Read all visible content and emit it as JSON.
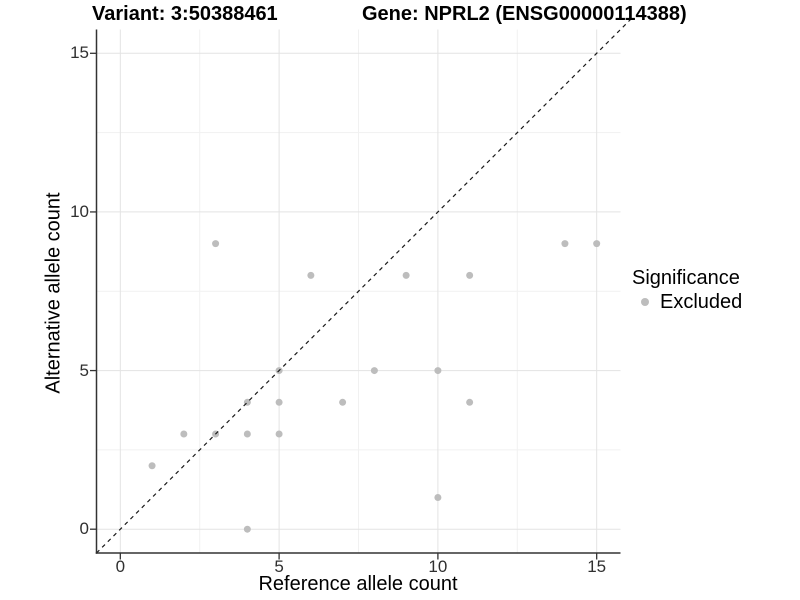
{
  "figure": {
    "title_left": "Variant: 3:50388461",
    "title_right": "Gene: NPRL2 (ENSG00000114388)"
  },
  "chart_data": {
    "type": "scatter",
    "title": "Variant: 3:50388461  /  Gene: NPRL2 (ENSG00000114388)",
    "xlabel": "Reference allele count",
    "ylabel": "Alternative allele count",
    "xlim": [
      -0.75,
      15.75
    ],
    "ylim": [
      -0.75,
      15.75
    ],
    "x_ticks": [
      0,
      5,
      10,
      15
    ],
    "y_ticks": [
      0,
      5,
      10,
      15
    ],
    "minor_gridlines": [
      2.5,
      7.5,
      12.5
    ],
    "grid": true,
    "identity_line": {
      "style": "dashed",
      "equation": "y = x"
    },
    "legend": {
      "title": "Significance",
      "position": "right",
      "items": [
        {
          "label": "Excluded",
          "color": "#bdbdbd"
        }
      ]
    },
    "series": [
      {
        "name": "Excluded",
        "color": "#bdbdbd",
        "points": [
          [
            1,
            2
          ],
          [
            2,
            3
          ],
          [
            3,
            3
          ],
          [
            3,
            9
          ],
          [
            4,
            0
          ],
          [
            4,
            3
          ],
          [
            4,
            4
          ],
          [
            5,
            3
          ],
          [
            5,
            4
          ],
          [
            5,
            5
          ],
          [
            6,
            8
          ],
          [
            7,
            4
          ],
          [
            8,
            5
          ],
          [
            9,
            8
          ],
          [
            10,
            1
          ],
          [
            10,
            5
          ],
          [
            11,
            4
          ],
          [
            11,
            8
          ],
          [
            14,
            9
          ],
          [
            15,
            9
          ]
        ]
      }
    ]
  },
  "colors": {
    "point": "#bdbdbd",
    "grid_major": "#e3e3e3",
    "grid_minor": "#f1f1f1",
    "axis": "#333333",
    "tick_label": "#303030",
    "identity_line": "#1a1a1a",
    "background": "#ffffff"
  }
}
